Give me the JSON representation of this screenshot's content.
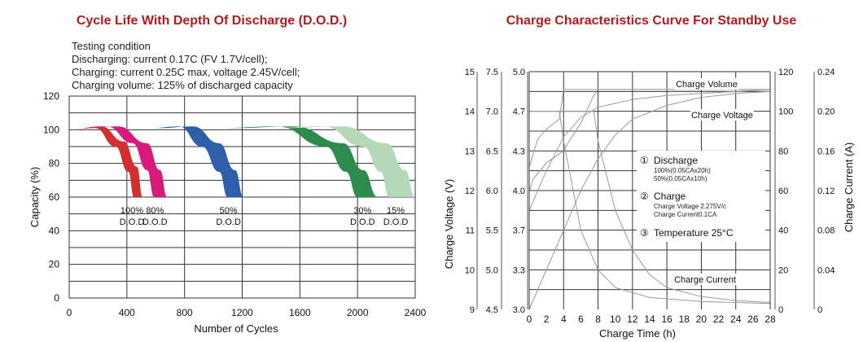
{
  "colors": {
    "title": "#b31b1b",
    "dod_100": "#d32f2f",
    "dod_80": "#d81b7a",
    "dod_50": "#2f5fa8",
    "dod_30": "#2e8b4e",
    "dod_15": "#b5d8b8",
    "curve_grey": "#999999"
  },
  "left": {
    "title": "Cycle Life With Depth Of Discharge (D.O.D.)",
    "conditions": [
      "Testing condition",
      "Discharging: current 0.17C (FV 1.7V/cell);",
      "Charging: current 0.25C max, voltage 2.45V/cell;",
      "Charging volume: 125% of discharged capacity"
    ],
    "xlabel": "Number of Cycles",
    "ylabel": "Capacity (%)",
    "xticks": [
      "0",
      "400",
      "800",
      "1200",
      "1600",
      "2000",
      "2400"
    ],
    "yticks": [
      "0",
      "20",
      "40",
      "60",
      "80",
      "100",
      "120"
    ],
    "band_labels": [
      {
        "pct": "100%",
        "dod": "D.O.D"
      },
      {
        "pct": "80%",
        "dod": "D.O.D"
      },
      {
        "pct": "50%",
        "dod": "D.O.D"
      },
      {
        "pct": "30%",
        "dod": "D.O.D"
      },
      {
        "pct": "15%",
        "dod": "D.O.D"
      }
    ]
  },
  "right": {
    "title": "Charge Characteristics Curve For Standby Use",
    "xlabel": "Charge Time (h)",
    "ylabel_left": "Charge Voltage (V)",
    "ylabel_right": "Charge Current (A)",
    "xticks": [
      "0",
      "2",
      "4",
      "6",
      "8",
      "10",
      "12",
      "14",
      "16",
      "18",
      "20",
      "22",
      "24",
      "26",
      "28"
    ],
    "y_axis_a": [
      "9",
      "10",
      "11",
      "12",
      "13",
      "14",
      "15"
    ],
    "y_axis_b": [
      "4.5",
      "5.0",
      "5.5",
      "6.0",
      "6.5",
      "7.0",
      "7.5"
    ],
    "y_axis_c": [
      "3.0",
      "3.3",
      "3.7",
      "4.0",
      "4.3",
      "4.7",
      "5.0"
    ],
    "y_axis_d": [
      "0",
      "20",
      "40",
      "60",
      "80",
      "100",
      "120"
    ],
    "y_axis_e": [
      "0",
      "0.04",
      "0.08",
      "0.12",
      "0.16",
      "0.20",
      "0.24"
    ],
    "curve_labels": {
      "charge_volume": "Charge Volume",
      "charge_voltage": "Charge Voltage",
      "charge_current": "Charge Current"
    },
    "notes": {
      "n1_mark": "①",
      "n1_title": "Discharge",
      "n1_line1": "100%(0.05CAx20h)",
      "n1_line2": "50%(0.05CAx10h)",
      "n2_mark": "②",
      "n2_title": "Charge",
      "n2_line1": "Charge Voltage 2.275V/c",
      "n2_line2": "Charge Current0.1CA",
      "n3_mark": "③",
      "n3_title": "Temperature 25°C"
    }
  },
  "chart_data": [
    {
      "type": "area",
      "title": "Cycle Life With Depth Of Discharge (D.O.D.)",
      "xlabel": "Number of Cycles",
      "ylabel": "Capacity (%)",
      "xlim": [
        0,
        2400
      ],
      "ylim": [
        0,
        120
      ],
      "grid": true,
      "series": [
        {
          "name": "100% D.O.D",
          "inner": [
            [
              0,
              100
            ],
            [
              180,
              101
            ],
            [
              320,
              90
            ],
            [
              410,
              75
            ],
            [
              450,
              60
            ]
          ],
          "outer": [
            [
              0,
              100
            ],
            [
              220,
              102
            ],
            [
              380,
              93
            ],
            [
              470,
              78
            ],
            [
              510,
              60
            ]
          ]
        },
        {
          "name": "80% D.O.D",
          "inner": [
            [
              60,
              101
            ],
            [
              260,
              102
            ],
            [
              440,
              92
            ],
            [
              540,
              76
            ],
            [
              590,
              60
            ]
          ],
          "outer": [
            [
              100,
              101
            ],
            [
              340,
              102
            ],
            [
              540,
              92
            ],
            [
              630,
              76
            ],
            [
              680,
              60
            ]
          ]
        },
        {
          "name": "50% D.O.D",
          "inner": [
            [
              560,
              101
            ],
            [
              760,
              102
            ],
            [
              920,
              90
            ],
            [
              1040,
              75
            ],
            [
              1100,
              60
            ]
          ],
          "outer": [
            [
              620,
              101
            ],
            [
              860,
              102
            ],
            [
              1040,
              92
            ],
            [
              1150,
              76
            ],
            [
              1210,
              60
            ]
          ]
        },
        {
          "name": "30% D.O.D",
          "inner": [
            [
              1020,
              101
            ],
            [
              1440,
              102
            ],
            [
              1780,
              90
            ],
            [
              1920,
              75
            ],
            [
              2000,
              60
            ]
          ],
          "outer": [
            [
              1120,
              101
            ],
            [
              1560,
              102
            ],
            [
              1900,
              92
            ],
            [
              2040,
              76
            ],
            [
              2140,
              60
            ]
          ]
        },
        {
          "name": "15% D.O.D",
          "inner": [
            [
              1360,
              101
            ],
            [
              1760,
              102
            ],
            [
              2040,
              90
            ],
            [
              2160,
              75
            ],
            [
              2220,
              60
            ]
          ],
          "outer": [
            [
              1480,
              101
            ],
            [
              1900,
              102
            ],
            [
              2200,
              92
            ],
            [
              2330,
              76
            ],
            [
              2400,
              60
            ]
          ]
        }
      ]
    },
    {
      "type": "line",
      "title": "Charge Characteristics Curve For Standby Use",
      "xlabel": "Charge Time (h)",
      "ylabel": "Charge Voltage (V)",
      "ylabel_right": "Charge Current (A)",
      "xlim": [
        0,
        28
      ],
      "ylim": [
        9,
        15
      ],
      "grid": true,
      "series": [
        {
          "name": "Charge Voltage",
          "axis": "voltage_12v",
          "points": [
            [
              0,
              12.0
            ],
            [
              0.5,
              12.3
            ],
            [
              2,
              12.7
            ],
            [
              4,
              13.0
            ],
            [
              4.5,
              13.2
            ],
            [
              6,
              13.7
            ],
            [
              7.5,
              14.4
            ],
            [
              8,
              14.55
            ],
            [
              28,
              14.55
            ]
          ]
        },
        {
          "name": "Charge Voltage",
          "axis": "voltage_12v",
          "points": [
            [
              0,
              12.6
            ],
            [
              1,
              13.3
            ],
            [
              2,
              13.55
            ],
            [
              3.5,
              13.8
            ],
            [
              4,
              14.55
            ],
            [
              28,
              14.55
            ]
          ]
        },
        {
          "name": "Charge Volume",
          "axis": "volume_pct",
          "points": [
            [
              0,
              0
            ],
            [
              2,
              20
            ],
            [
              4,
              40
            ],
            [
              6,
              60
            ],
            [
              8,
              76
            ],
            [
              10,
              88
            ],
            [
              12,
              96
            ],
            [
              16,
              103
            ],
            [
              20,
              107
            ],
            [
              24,
              109
            ],
            [
              28,
              110
            ]
          ]
        },
        {
          "name": "Charge Volume",
          "axis": "volume_pct",
          "points": [
            [
              0,
              50
            ],
            [
              2,
              70
            ],
            [
              4,
              87
            ],
            [
              6,
              97
            ],
            [
              8,
              102
            ],
            [
              12,
              106
            ],
            [
              16,
              108
            ],
            [
              20,
              109
            ],
            [
              24,
              110
            ],
            [
              28,
              111
            ]
          ]
        },
        {
          "name": "Charge Current",
          "axis": "current_a",
          "points": [
            [
              0,
              0.2
            ],
            [
              7.5,
              0.2
            ],
            [
              8,
              0.17
            ],
            [
              10,
              0.1
            ],
            [
              12,
              0.06
            ],
            [
              14,
              0.035
            ],
            [
              16,
              0.022
            ],
            [
              20,
              0.013
            ],
            [
              24,
              0.009
            ],
            [
              28,
              0.007
            ]
          ]
        },
        {
          "name": "Charge Current",
          "axis": "current_a",
          "points": [
            [
              0,
              0.2
            ],
            [
              3.5,
              0.2
            ],
            [
              4,
              0.17
            ],
            [
              6,
              0.08
            ],
            [
              8,
              0.04
            ],
            [
              10,
              0.022
            ],
            [
              14,
              0.012
            ],
            [
              20,
              0.008
            ],
            [
              28,
              0.006
            ]
          ]
        }
      ]
    }
  ]
}
